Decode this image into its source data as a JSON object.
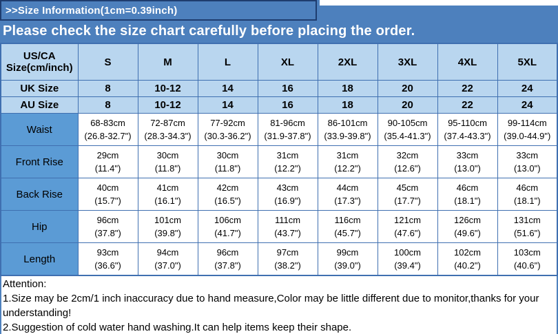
{
  "banner": {
    "size_info": ">>Size Information(1cm=0.39inch)",
    "check_notice": "Please check the size chart carefully before placing the order."
  },
  "table": {
    "corner_header": "US/CA Size(cm/inch)",
    "size_headers": [
      "S",
      "M",
      "L",
      "XL",
      "2XL",
      "3XL",
      "4XL",
      "5XL"
    ],
    "size_rows": [
      {
        "label": "UK Size",
        "values": [
          "8",
          "10-12",
          "14",
          "16",
          "18",
          "20",
          "22",
          "24"
        ]
      },
      {
        "label": "AU Size",
        "values": [
          "8",
          "10-12",
          "14",
          "16",
          "18",
          "20",
          "22",
          "24"
        ]
      }
    ],
    "measurement_rows": [
      {
        "label": "Waist",
        "cm": [
          "68-83cm",
          "72-87cm",
          "77-92cm",
          "81-96cm",
          "86-101cm",
          "90-105cm",
          "95-110cm",
          "99-114cm"
        ],
        "inch": [
          "(26.8-32.7\")",
          "(28.3-34.3\")",
          "(30.3-36.2\")",
          "(31.9-37.8\")",
          "(33.9-39.8\")",
          "(35.4-41.3\")",
          "(37.4-43.3\")",
          "(39.0-44.9\")"
        ]
      },
      {
        "label": "Front Rise",
        "cm": [
          "29cm",
          "30cm",
          "30cm",
          "31cm",
          "31cm",
          "32cm",
          "33cm",
          "33cm"
        ],
        "inch": [
          "(11.4\")",
          "(11.8\")",
          "(11.8\")",
          "(12.2\")",
          "(12.2\")",
          "(12.6\")",
          "(13.0\")",
          "(13.0\")"
        ]
      },
      {
        "label": "Back Rise",
        "cm": [
          "40cm",
          "41cm",
          "42cm",
          "43cm",
          "44cm",
          "45cm",
          "46cm",
          "46cm"
        ],
        "inch": [
          "(15.7\")",
          "(16.1\")",
          "(16.5\")",
          "(16.9\")",
          "(17.3\")",
          "(17.7\")",
          "(18.1\")",
          "(18.1\")"
        ]
      },
      {
        "label": "Hip",
        "cm": [
          "96cm",
          "101cm",
          "106cm",
          "111cm",
          "116cm",
          "121cm",
          "126cm",
          "131cm"
        ],
        "inch": [
          "(37.8\")",
          "(39.8\")",
          "(41.7\")",
          "(43.7\")",
          "(45.7\")",
          "(47.6\")",
          "(49.6\")",
          "(51.6\")"
        ]
      },
      {
        "label": "Length",
        "cm": [
          "93cm",
          "94cm",
          "96cm",
          "97cm",
          "99cm",
          "100cm",
          "102cm",
          "103cm"
        ],
        "inch": [
          "(36.6\")",
          "(37.0\")",
          "(37.8\")",
          "(38.2\")",
          "(39.0\")",
          "(39.4\")",
          "(40.2\")",
          "(40.6\")"
        ]
      }
    ]
  },
  "attention": {
    "title": "Attention:",
    "notes": [
      "1.Size may be 2cm/1 inch inaccuracy due to hand measure,Color may be little different due to monitor,thanks for your understanding!",
      "2.Suggestion of cold water hand washing.It can help items keep their shape."
    ]
  },
  "colors": {
    "banner_blue": "#4d80bd",
    "banner_border_navy": "#1e3c6e",
    "header_row_light_blue": "#b9d6ef",
    "label_column_blue": "#5b9bd5",
    "grid_border_blue": "#3f6fb0",
    "text_black": "#000000",
    "text_white": "#ffffff"
  }
}
